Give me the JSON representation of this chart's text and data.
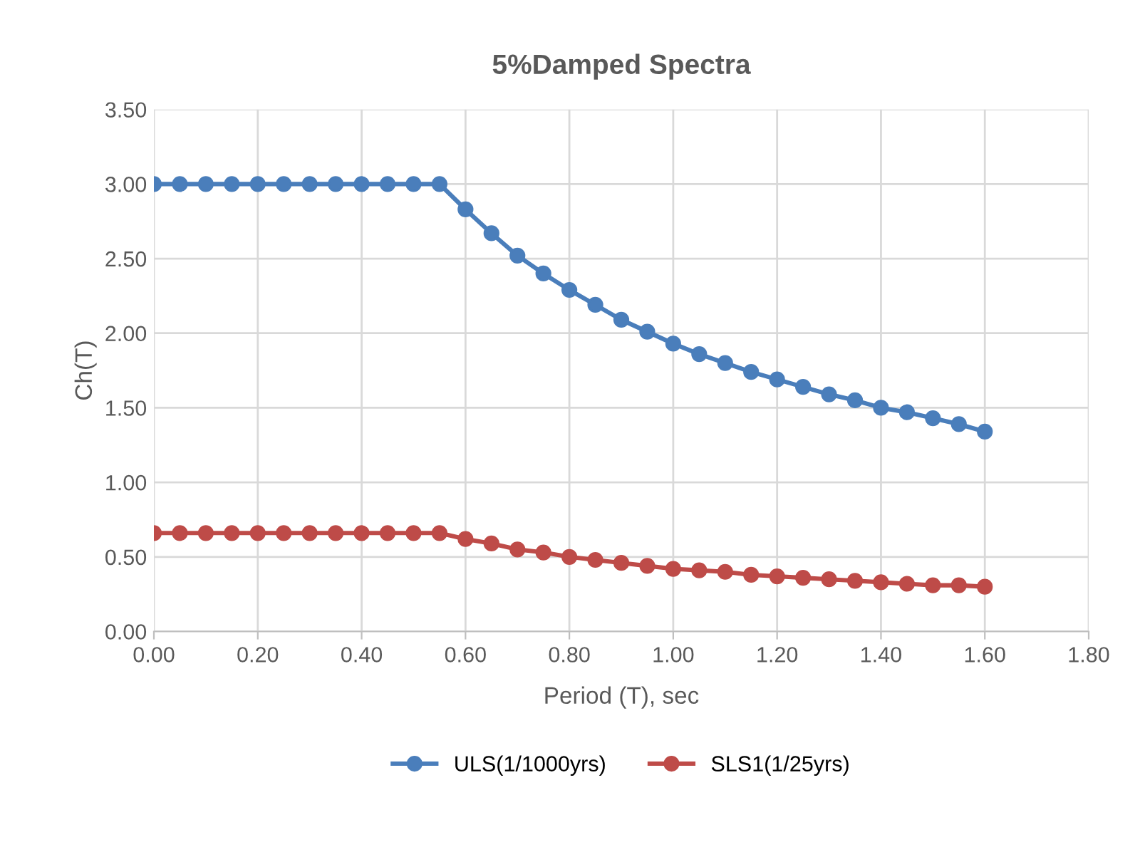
{
  "chart_data": {
    "type": "line",
    "title": "5%Damped Spectra",
    "xlabel": "Period (T), sec",
    "ylabel": "Ch(T)",
    "x": [
      0,
      0.05,
      0.1,
      0.15,
      0.2,
      0.25,
      0.3,
      0.35,
      0.4,
      0.45,
      0.5,
      0.55,
      0.6,
      0.65,
      0.7,
      0.75,
      0.8,
      0.85,
      0.9,
      0.95,
      1.0,
      1.05,
      1.1,
      1.15,
      1.2,
      1.25,
      1.3,
      1.35,
      1.4,
      1.45,
      1.5,
      1.55,
      1.6
    ],
    "series": [
      {
        "name": "ULS(1/1000yrs)",
        "color": "#4a7ebb",
        "values": [
          3.0,
          3.0,
          3.0,
          3.0,
          3.0,
          3.0,
          3.0,
          3.0,
          3.0,
          3.0,
          3.0,
          3.0,
          2.83,
          2.67,
          2.52,
          2.4,
          2.29,
          2.19,
          2.09,
          2.01,
          1.93,
          1.86,
          1.8,
          1.74,
          1.69,
          1.64,
          1.59,
          1.55,
          1.5,
          1.47,
          1.43,
          1.39,
          1.34
        ]
      },
      {
        "name": "SLS1(1/25yrs)",
        "color": "#be4b48",
        "values": [
          0.66,
          0.66,
          0.66,
          0.66,
          0.66,
          0.66,
          0.66,
          0.66,
          0.66,
          0.66,
          0.66,
          0.66,
          0.62,
          0.59,
          0.55,
          0.53,
          0.5,
          0.48,
          0.46,
          0.44,
          0.42,
          0.41,
          0.4,
          0.38,
          0.37,
          0.36,
          0.35,
          0.34,
          0.33,
          0.32,
          0.31,
          0.31,
          0.3
        ]
      }
    ],
    "xlim": [
      0,
      1.8
    ],
    "xticks": [
      {
        "value": 0,
        "label": "0.00"
      },
      {
        "value": 0.2,
        "label": "0.20"
      },
      {
        "value": 0.4,
        "label": "0.40"
      },
      {
        "value": 0.6,
        "label": "0.60"
      },
      {
        "value": 0.8,
        "label": "0.80"
      },
      {
        "value": 1.0,
        "label": "1.00"
      },
      {
        "value": 1.2,
        "label": "1.20"
      },
      {
        "value": 1.4,
        "label": "1.40"
      },
      {
        "value": 1.6,
        "label": "1.60"
      },
      {
        "value": 1.8,
        "label": "1.80"
      }
    ],
    "ylim": [
      0,
      3.5
    ],
    "yticks": [
      {
        "value": 0,
        "label": "0.00"
      },
      {
        "value": 0.5,
        "label": "0.50"
      },
      {
        "value": 1.0,
        "label": "1.00"
      },
      {
        "value": 1.5,
        "label": "1.50"
      },
      {
        "value": 2.0,
        "label": "2.00"
      },
      {
        "value": 2.5,
        "label": "2.50"
      },
      {
        "value": 3.0,
        "label": "3.00"
      },
      {
        "value": 3.5,
        "label": "3.50"
      }
    ],
    "grid": true,
    "legend": "bottom",
    "marker": "circle",
    "line_style": "solid"
  }
}
